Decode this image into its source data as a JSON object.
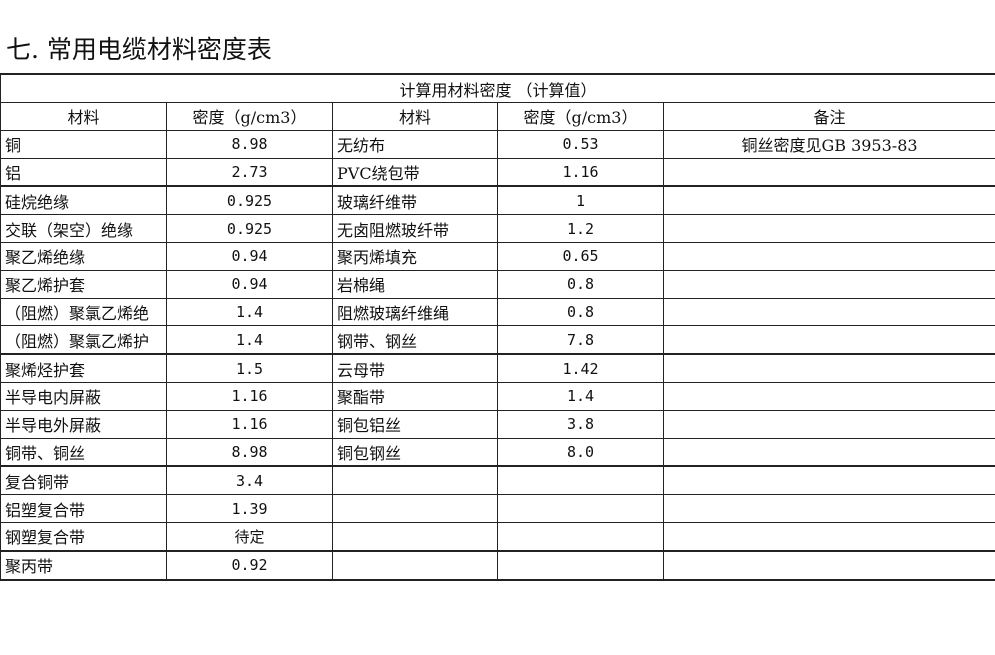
{
  "title": "七. 常用电缆材料密度表",
  "table": {
    "banner": "计算用材料密度 （计算值）",
    "headers": [
      "材料",
      "密度（g/cm3）",
      "材料",
      "密度（g/cm3）",
      "备注"
    ],
    "rows": [
      [
        "铜",
        "8.98",
        "无纺布",
        "0.53",
        "铜丝密度见GB 3953-83"
      ],
      [
        "铝",
        "2.73",
        "PVC绕包带",
        "1.16",
        ""
      ],
      [
        "硅烷绝缘",
        "0.925",
        "玻璃纤维带",
        "1",
        ""
      ],
      [
        "交联（架空）绝缘",
        "0.925",
        "无卤阻燃玻纤带",
        "1.2",
        ""
      ],
      [
        "聚乙烯绝缘",
        "0.94",
        "聚丙烯填充",
        "0.65",
        ""
      ],
      [
        "聚乙烯护套",
        "0.94",
        "岩棉绳",
        "0.8",
        ""
      ],
      [
        "（阻燃）聚氯乙烯绝",
        "1.4",
        "阻燃玻璃纤维绳",
        "0.8",
        ""
      ],
      [
        "（阻燃）聚氯乙烯护",
        "1.4",
        "钢带、钢丝",
        "7.8",
        ""
      ],
      [
        "聚烯烃护套",
        "1.5",
        "云母带",
        "1.42",
        ""
      ],
      [
        "半导电内屏蔽",
        "1.16",
        "聚酯带",
        "1.4",
        ""
      ],
      [
        "半导电外屏蔽",
        "1.16",
        "铜包铝丝",
        "3.8",
        ""
      ],
      [
        "铜带、铜丝",
        "8.98",
        "铜包钢丝",
        "8.0",
        ""
      ],
      [
        "复合铜带",
        "3.4",
        "",
        "",
        ""
      ],
      [
        "铝塑复合带",
        "1.39",
        "",
        "",
        ""
      ],
      [
        "钢塑复合带",
        "待定",
        "",
        "",
        ""
      ],
      [
        "聚丙带",
        "0.92",
        "",
        "",
        ""
      ]
    ]
  }
}
